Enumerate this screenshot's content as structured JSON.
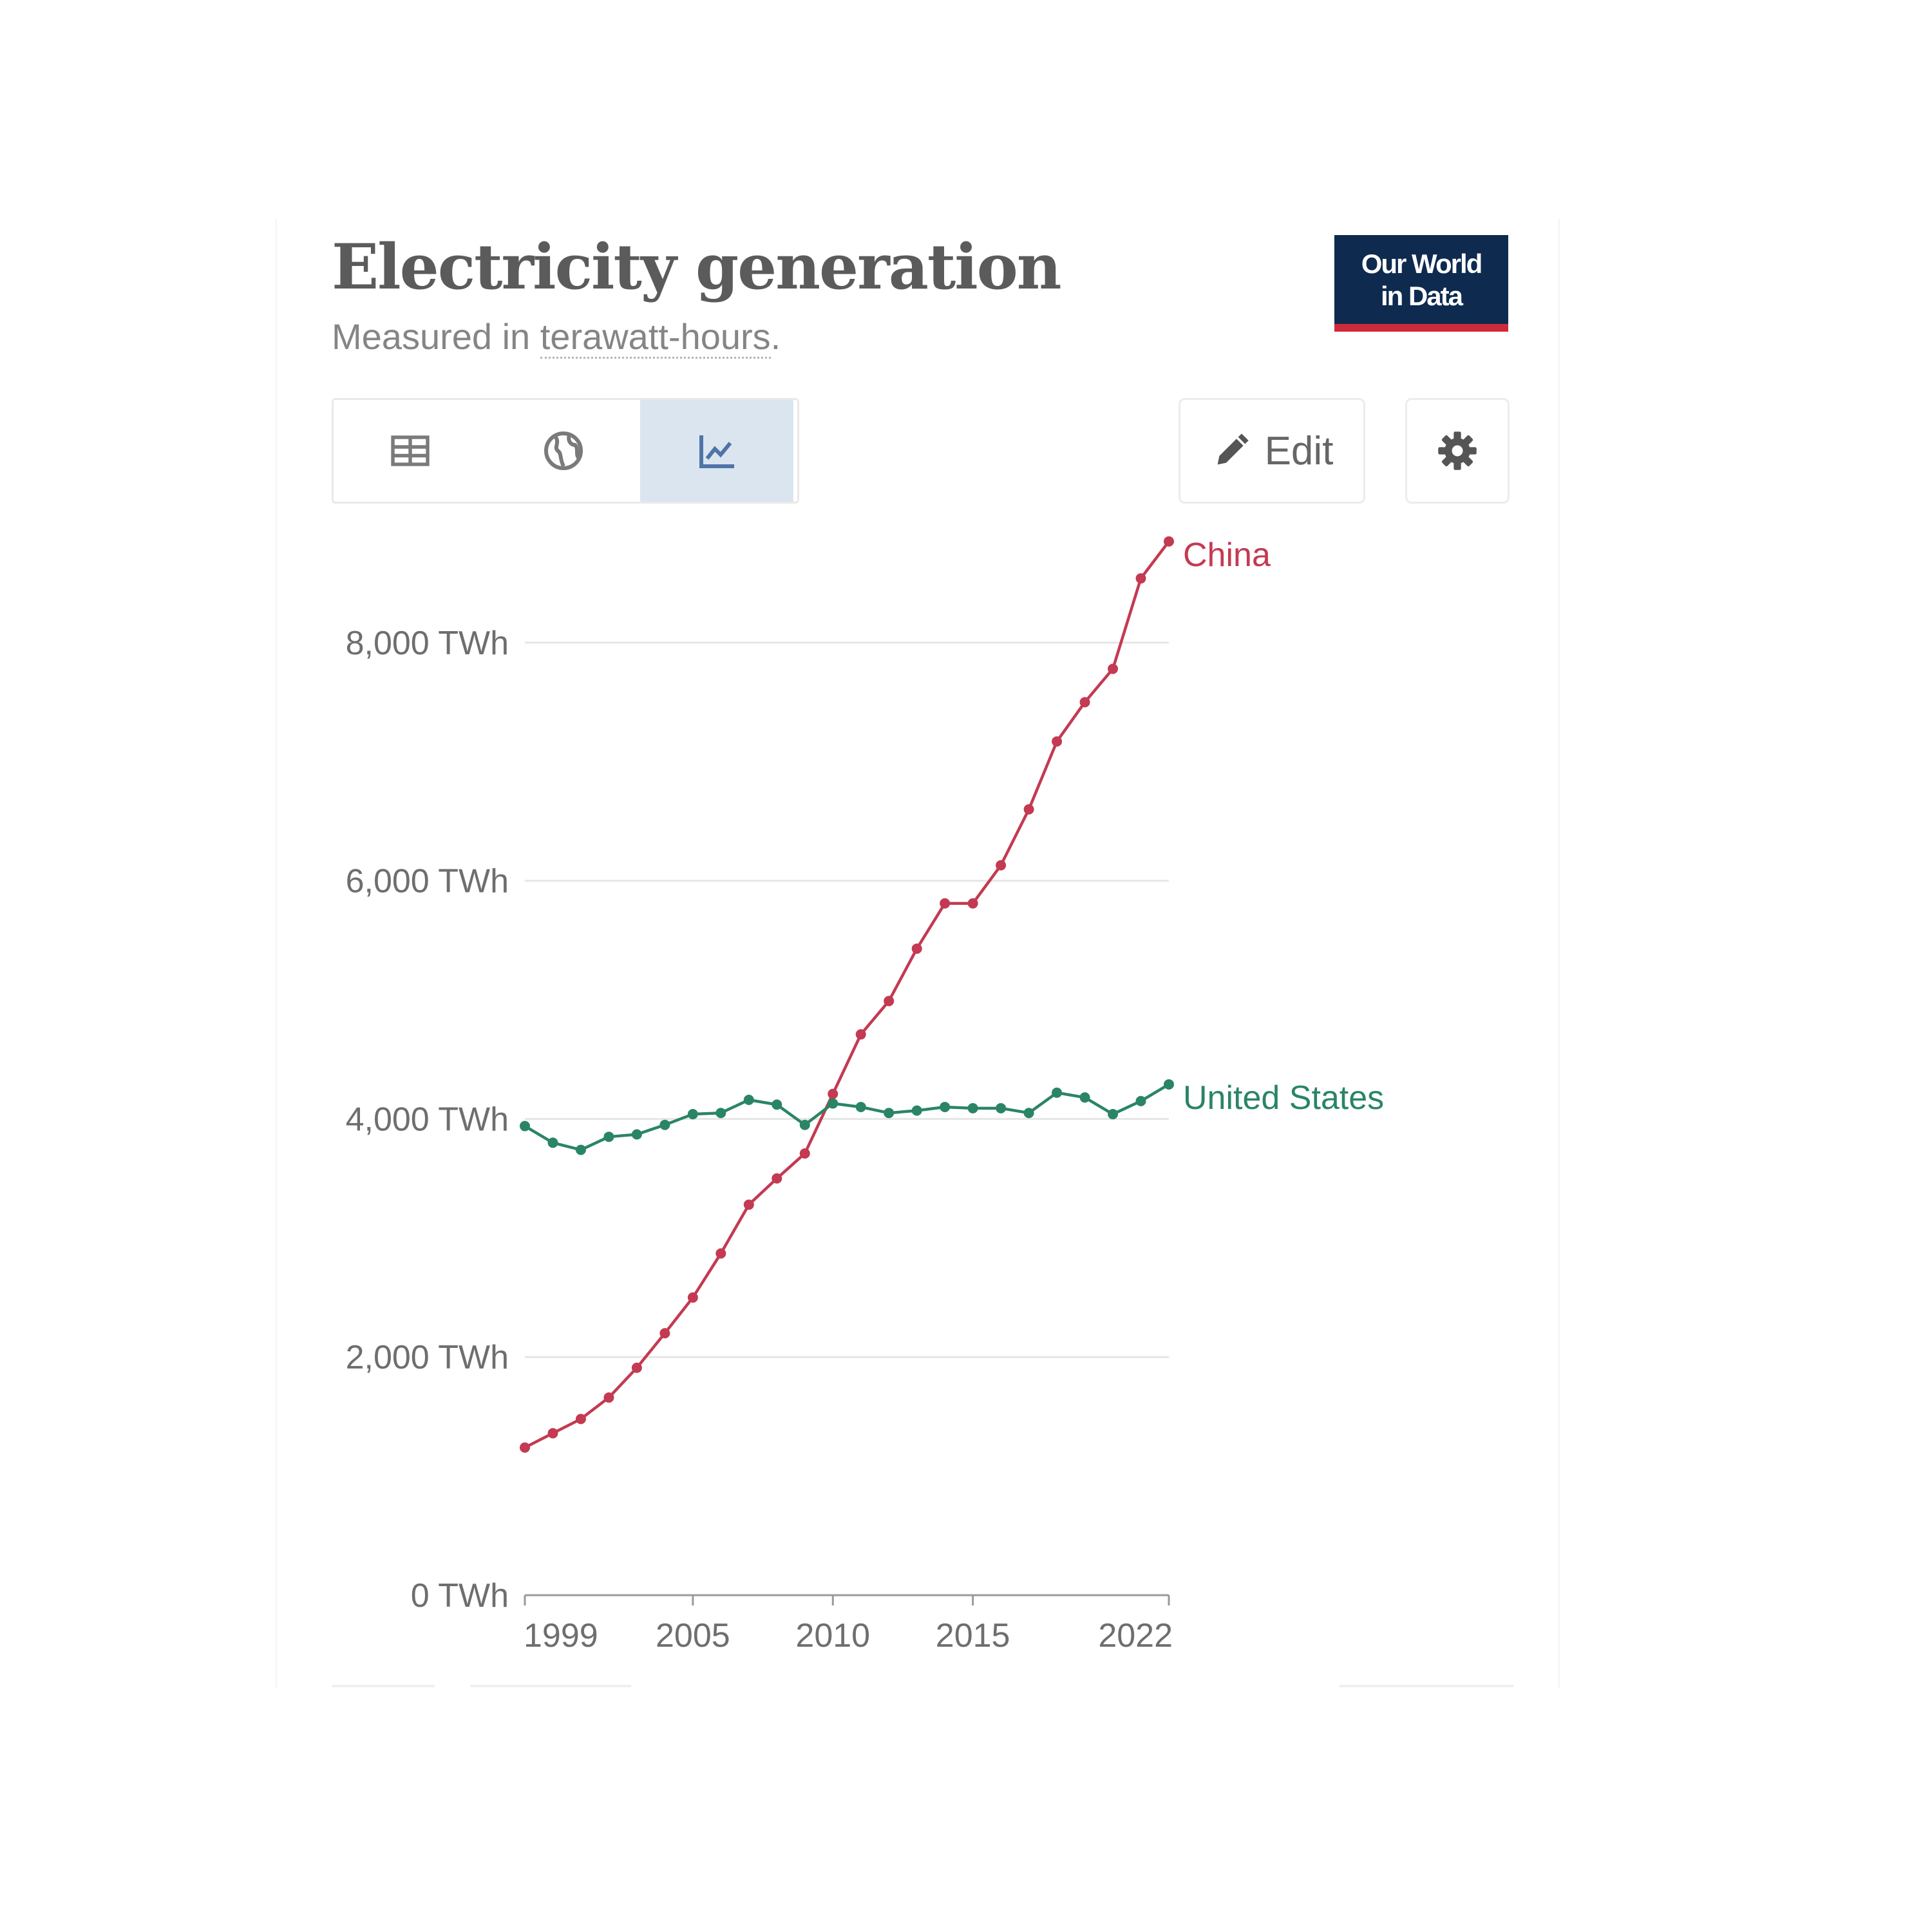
{
  "header": {
    "title": "Electricity generation",
    "subtitle_prefix": "Measured in ",
    "subtitle_unit": "terawatt-hours",
    "subtitle_suffix": ".",
    "logo_line1": "Our World",
    "logo_line2": "in Data"
  },
  "toolbar": {
    "tabs": [
      {
        "icon": "table-icon",
        "active": false
      },
      {
        "icon": "globe-icon",
        "active": false
      },
      {
        "icon": "line-chart-icon",
        "active": true
      }
    ],
    "edit_label": "Edit",
    "settings_icon": "gear-icon"
  },
  "colors": {
    "china": "#c33a52",
    "united_states": "#2a8565",
    "active_tab": "#dbe5f0",
    "logo_bg": "#0e2a4f",
    "logo_accent": "#cf2a3b"
  },
  "chart_data": {
    "type": "line",
    "title": "Electricity generation",
    "subtitle": "Measured in terawatt-hours.",
    "xlabel": "",
    "ylabel": "",
    "x": [
      1999,
      2000,
      2001,
      2002,
      2003,
      2004,
      2005,
      2006,
      2007,
      2008,
      2009,
      2010,
      2011,
      2012,
      2013,
      2014,
      2015,
      2016,
      2017,
      2018,
      2019,
      2020,
      2021,
      2022
    ],
    "x_ticks": [
      "1999",
      "2005",
      "2010",
      "2015",
      "2022"
    ],
    "x_tick_values": [
      1999,
      2005,
      2010,
      2015,
      2022
    ],
    "y_ticks": [
      "0 TWh",
      "2,000 TWh",
      "4,000 TWh",
      "6,000 TWh",
      "8,000 TWh"
    ],
    "y_tick_values": [
      0,
      2000,
      4000,
      6000,
      8000
    ],
    "xlim": [
      1999,
      2022
    ],
    "ylim": [
      0,
      8800
    ],
    "grid": "horizontal",
    "legend": "end-of-line labels",
    "series": [
      {
        "name": "China",
        "color": "#c33a52",
        "values": [
          1240,
          1360,
          1480,
          1660,
          1910,
          2200,
          2500,
          2870,
          3280,
          3500,
          3710,
          4210,
          4710,
          4990,
          5430,
          5810,
          5810,
          6130,
          6600,
          7170,
          7500,
          7780,
          8540,
          8850
        ]
      },
      {
        "name": "United States",
        "color": "#2a8565",
        "values": [
          3940,
          3800,
          3740,
          3850,
          3870,
          3950,
          4040,
          4050,
          4160,
          4120,
          3950,
          4130,
          4100,
          4050,
          4070,
          4100,
          4090,
          4090,
          4050,
          4220,
          4180,
          4040,
          4150,
          4290
        ]
      }
    ]
  }
}
